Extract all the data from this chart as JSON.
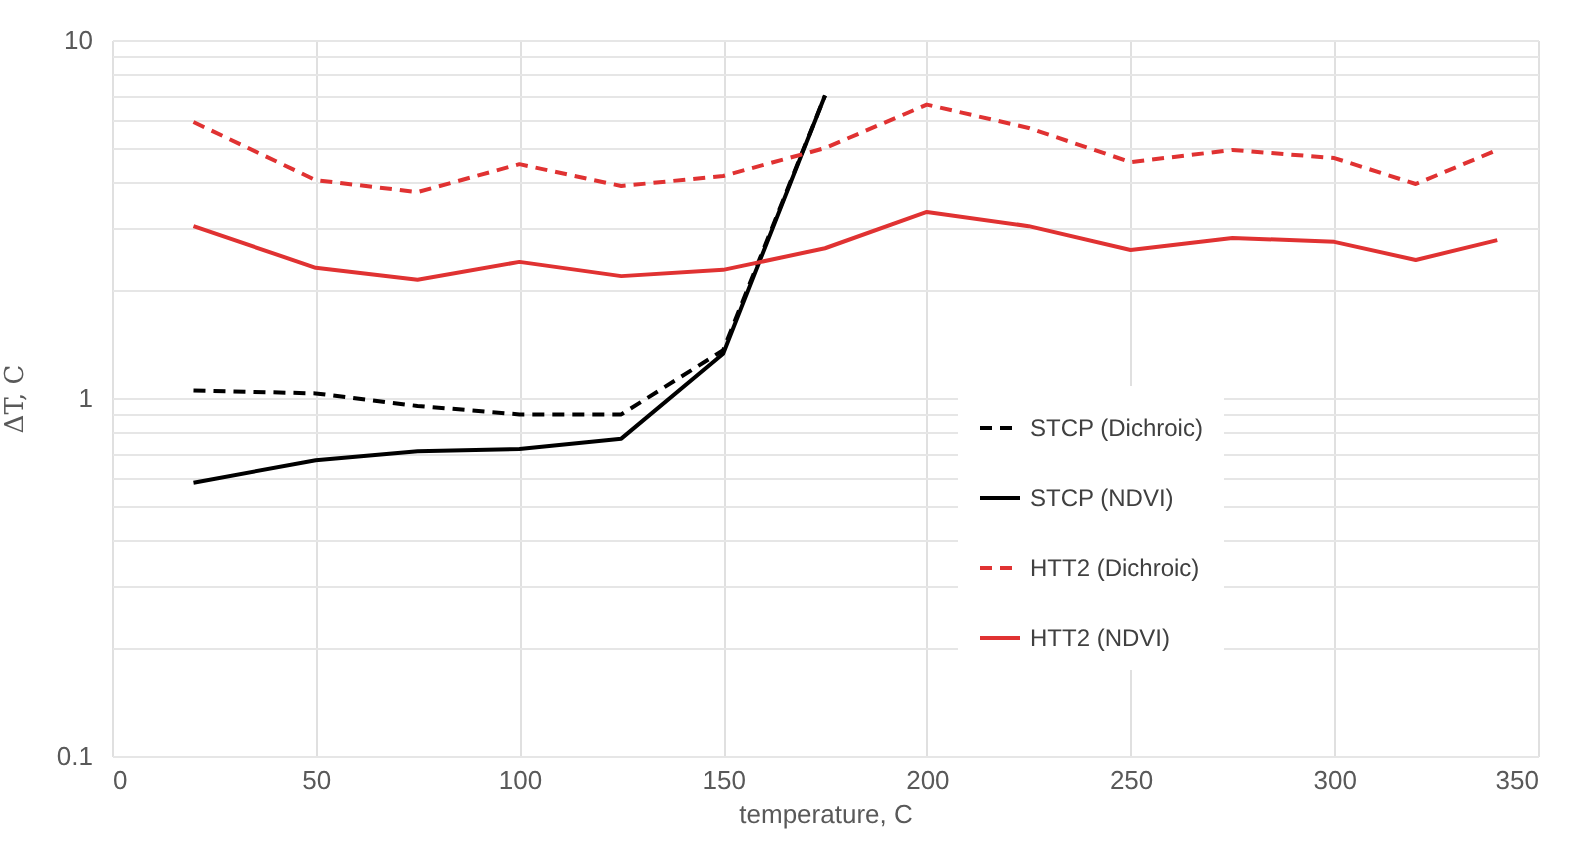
{
  "chart_data": {
    "type": "line",
    "xlabel": "temperature, C",
    "ylabel": "ΔT, C",
    "xlim": [
      0,
      350
    ],
    "xticks": [
      0,
      50,
      100,
      150,
      200,
      250,
      300,
      350
    ],
    "ylim": [
      0.1,
      10
    ],
    "log": true,
    "yticks": [
      0.1,
      {
        "value": 0.2,
        "label": null
      },
      {
        "value": 0.3,
        "label": null
      },
      {
        "value": 0.4,
        "label": null
      },
      {
        "value": 0.5,
        "label": null
      },
      {
        "value": 0.6,
        "label": null
      },
      {
        "value": 0.7,
        "label": null
      },
      {
        "value": 0.8,
        "label": null
      },
      {
        "value": 0.9,
        "label": null
      },
      1,
      {
        "value": 2,
        "label": null
      },
      {
        "value": 3,
        "label": null
      },
      {
        "value": 4,
        "label": null
      },
      {
        "value": 5,
        "label": null
      },
      {
        "value": 6,
        "label": null
      },
      {
        "value": 7,
        "label": null
      },
      {
        "value": 8,
        "label": null
      },
      {
        "value": 9,
        "label": null
      },
      10
    ],
    "grid": true,
    "legend": "bottom right",
    "marker": "none",
    "x": [
      20,
      50,
      75,
      100,
      125,
      150,
      175
    ],
    "series": [
      {
        "name": "STCP (Dichroic)",
        "color": "#000000",
        "line_style": "dashed",
        "values": [
          1.05,
          1.03,
          0.95,
          0.9,
          0.9,
          1.36,
          7.0
        ]
      },
      {
        "name": "STCP (NDVI)",
        "color": "#000000",
        "line_style": "solid",
        "values": [
          0.58,
          0.67,
          0.71,
          0.72,
          0.77,
          1.33,
          7.0
        ]
      },
      {
        "name": "HTT2 (Dichroic)",
        "color": "#e03232",
        "line_style": "dashed",
        "x": [
          20,
          50,
          75,
          100,
          125,
          150,
          175,
          200,
          225,
          250,
          275,
          300,
          320,
          340
        ],
        "values": [
          5.9,
          4.06,
          3.76,
          4.5,
          3.91,
          4.17,
          4.99,
          6.6,
          5.68,
          4.56,
          4.93,
          4.68,
          3.96,
          4.93
        ]
      },
      {
        "name": "HTT2 (NDVI)",
        "color": "#e03232",
        "line_style": "solid",
        "x": [
          20,
          50,
          75,
          100,
          125,
          150,
          175,
          200,
          225,
          250,
          275,
          300,
          320,
          340
        ],
        "values": [
          3.02,
          2.31,
          2.14,
          2.4,
          2.19,
          2.28,
          2.62,
          3.31,
          3.02,
          2.59,
          2.8,
          2.73,
          2.43,
          2.76
        ]
      }
    ]
  }
}
